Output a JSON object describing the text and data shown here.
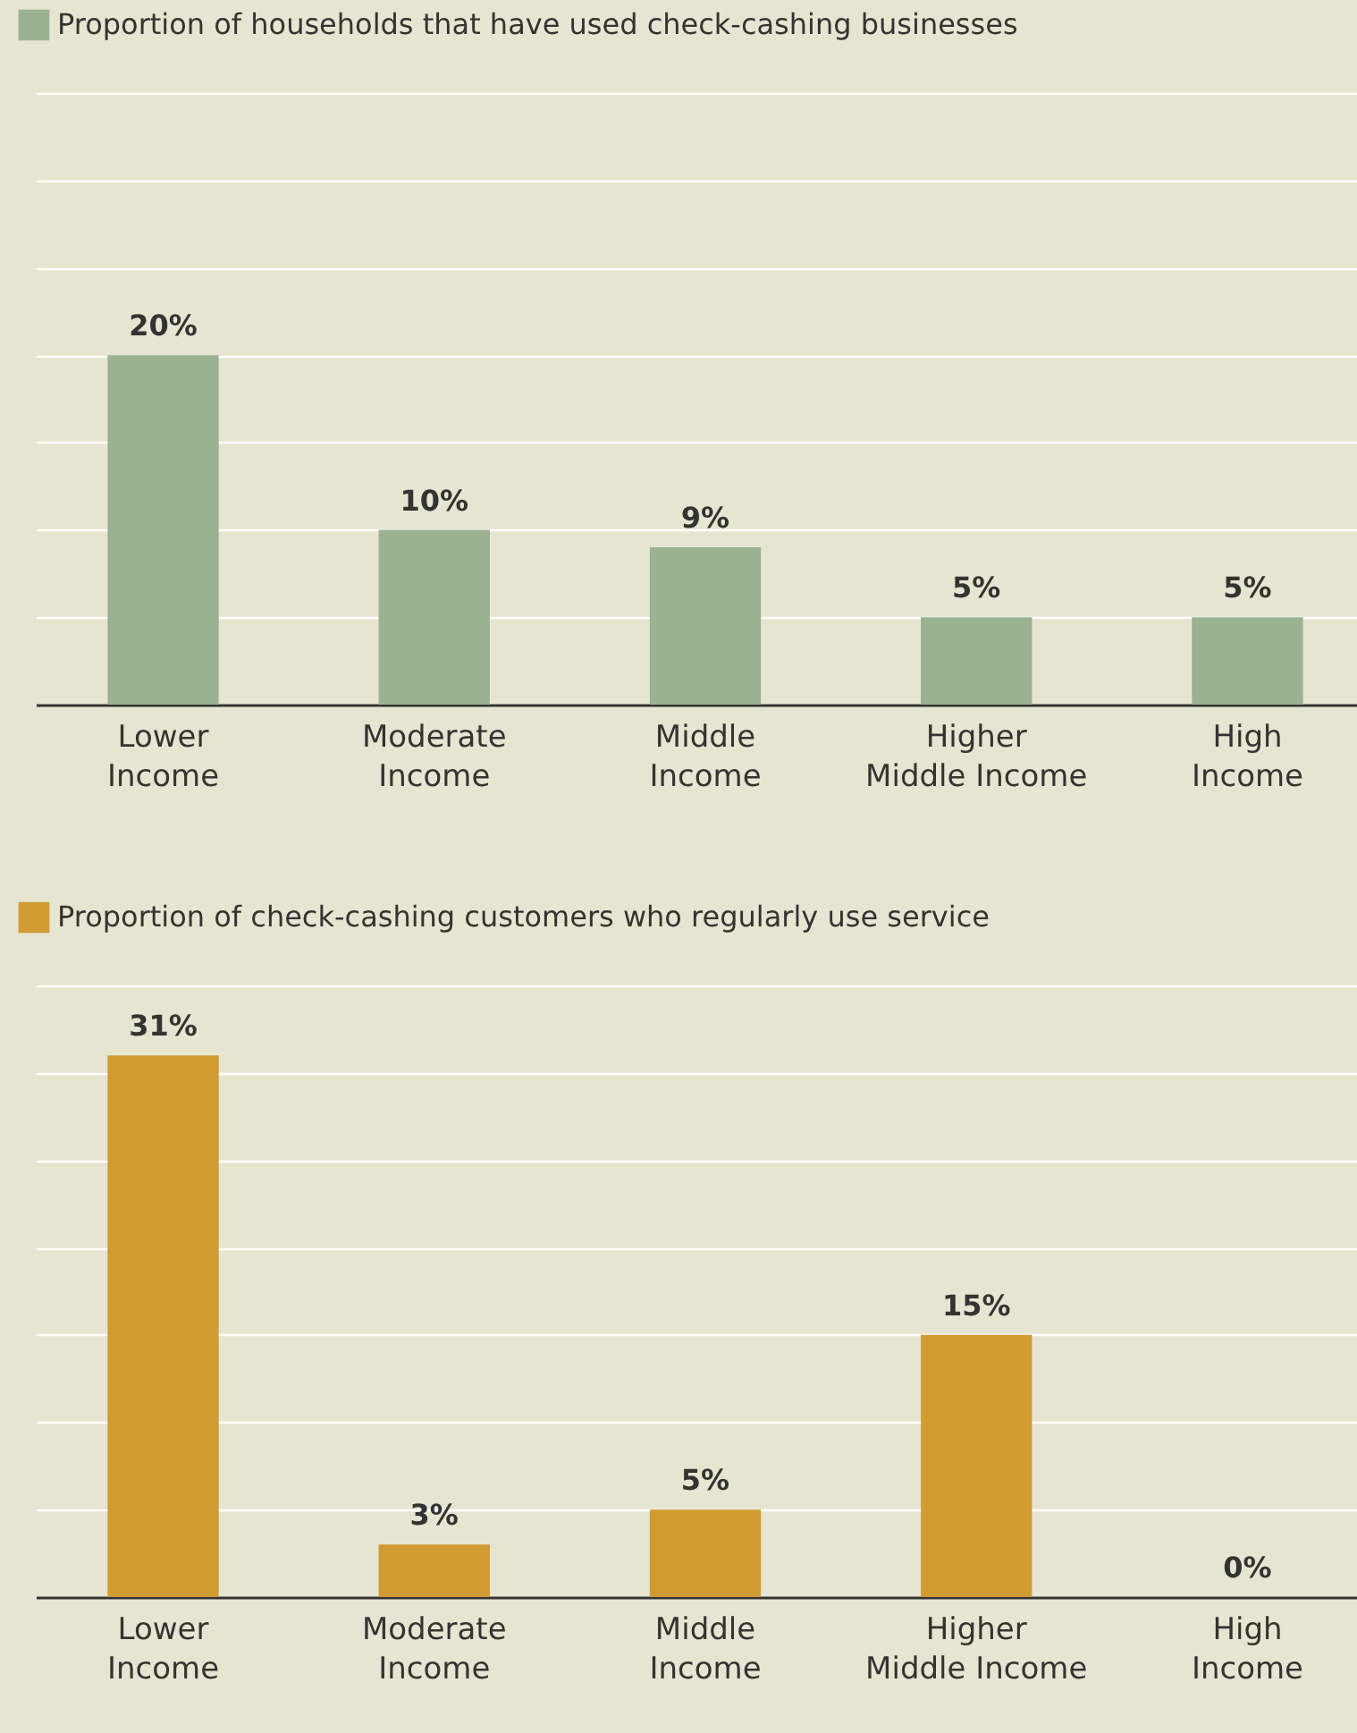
{
  "chart_data": [
    {
      "type": "bar",
      "categories": [
        "Lower\nIncome",
        "Moderate\nIncome",
        "Middle\nIncome",
        "Higher\nMiddle Income",
        "High\nIncome"
      ],
      "series": [
        {
          "name": "Proportion of households that have used check-cashing businesses",
          "color": "#9bb291",
          "values": [
            20,
            10,
            9,
            5,
            5
          ],
          "value_labels": [
            "20%",
            "10%",
            "9%",
            "5%",
            "5%"
          ]
        }
      ],
      "ylim": [
        0,
        35
      ],
      "yticks": [
        {
          "value": 0,
          "label": null
        },
        {
          "value": 5,
          "label": null
        },
        {
          "value": 10,
          "label": null
        },
        {
          "value": 15,
          "label": null
        },
        {
          "value": 20,
          "label": null
        },
        {
          "value": 25,
          "label": null
        },
        {
          "value": 30,
          "label": null
        },
        {
          "value": 35,
          "label": null
        }
      ],
      "grid": "y",
      "legend": "top left",
      "tick_labels": "x"
    },
    {
      "type": "bar",
      "categories": [
        "Lower\nIncome",
        "Moderate\nIncome",
        "Middle\nIncome",
        "Higher\nMiddle Income",
        "High\nIncome"
      ],
      "series": [
        {
          "name": "Proportion of check-cashing customers who regularly use service",
          "color": "#d19a33",
          "values": [
            31,
            3,
            5,
            15,
            0
          ],
          "value_labels": [
            "31%",
            "3%",
            "5%",
            "15%",
            "0%"
          ]
        }
      ],
      "ylim": [
        0,
        35
      ],
      "yticks": [
        {
          "value": 0,
          "label": null
        },
        {
          "value": 5,
          "label": null
        },
        {
          "value": 10,
          "label": null
        },
        {
          "value": 15,
          "label": null
        },
        {
          "value": 20,
          "label": null
        },
        {
          "value": 25,
          "label": null
        },
        {
          "value": 30,
          "label": null
        },
        {
          "value": 35,
          "label": null
        }
      ],
      "grid": "y",
      "legend": "top left",
      "tick_labels": "x"
    }
  ]
}
